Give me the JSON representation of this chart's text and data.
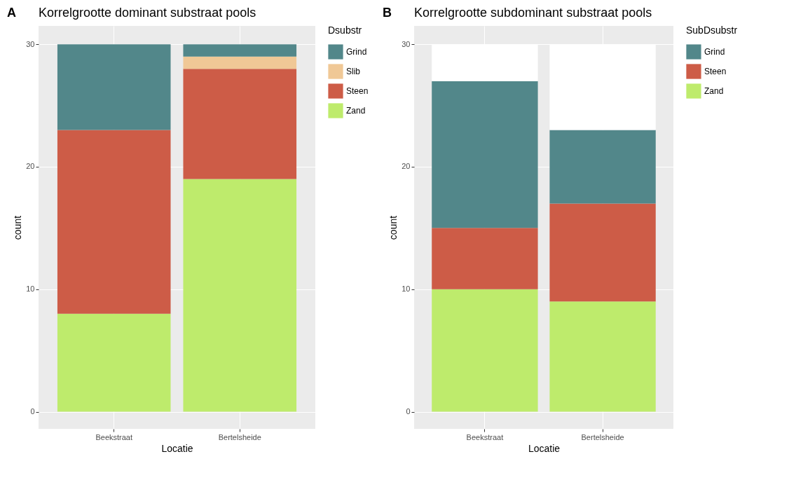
{
  "chart_data": [
    {
      "type": "bar",
      "title": "Korrelgrootte dominant substraat pools",
      "annotations": [
        "A"
      ],
      "xlabel": "Locatie",
      "ylabel": "count",
      "legend_title": "Dsubstr",
      "categories": [
        "Beekstraat",
        "Bertelsheide"
      ],
      "stacked": true,
      "ylim": [
        -1.4,
        31.5
      ],
      "yticks": [
        0,
        10,
        20,
        30
      ],
      "grid": true,
      "legend": "right",
      "series": [
        {
          "name": "Zand",
          "color": "#beeb6c",
          "values": [
            8,
            19
          ]
        },
        {
          "name": "Steen",
          "color": "#cd5c47",
          "values": [
            15,
            9
          ]
        },
        {
          "name": "Slib",
          "color": "#f0c896",
          "values": [
            0,
            1
          ]
        },
        {
          "name": "Grind",
          "color": "#52878a",
          "values": [
            7,
            1
          ]
        }
      ]
    },
    {
      "type": "bar",
      "title": "Korrelgrootte subdominant substraat pools",
      "annotations": [
        "B"
      ],
      "xlabel": "Locatie",
      "ylabel": "count",
      "legend_title": "SubDsubstr",
      "categories": [
        "Beekstraat",
        "Bertelsheide"
      ],
      "stacked": true,
      "ylim": [
        -1.4,
        31.5
      ],
      "yticks": [
        0,
        10,
        20,
        30
      ],
      "grid": true,
      "legend": "right",
      "series": [
        {
          "name": "Zand",
          "color": "#beeb6c",
          "values": [
            10,
            9
          ]
        },
        {
          "name": "Steen",
          "color": "#cd5c47",
          "values": [
            5,
            8
          ]
        },
        {
          "name": "Grind",
          "color": "#52878a",
          "values": [
            12,
            6
          ]
        },
        {
          "color": "#ffffff",
          "values": [
            3,
            7
          ]
        }
      ]
    }
  ]
}
